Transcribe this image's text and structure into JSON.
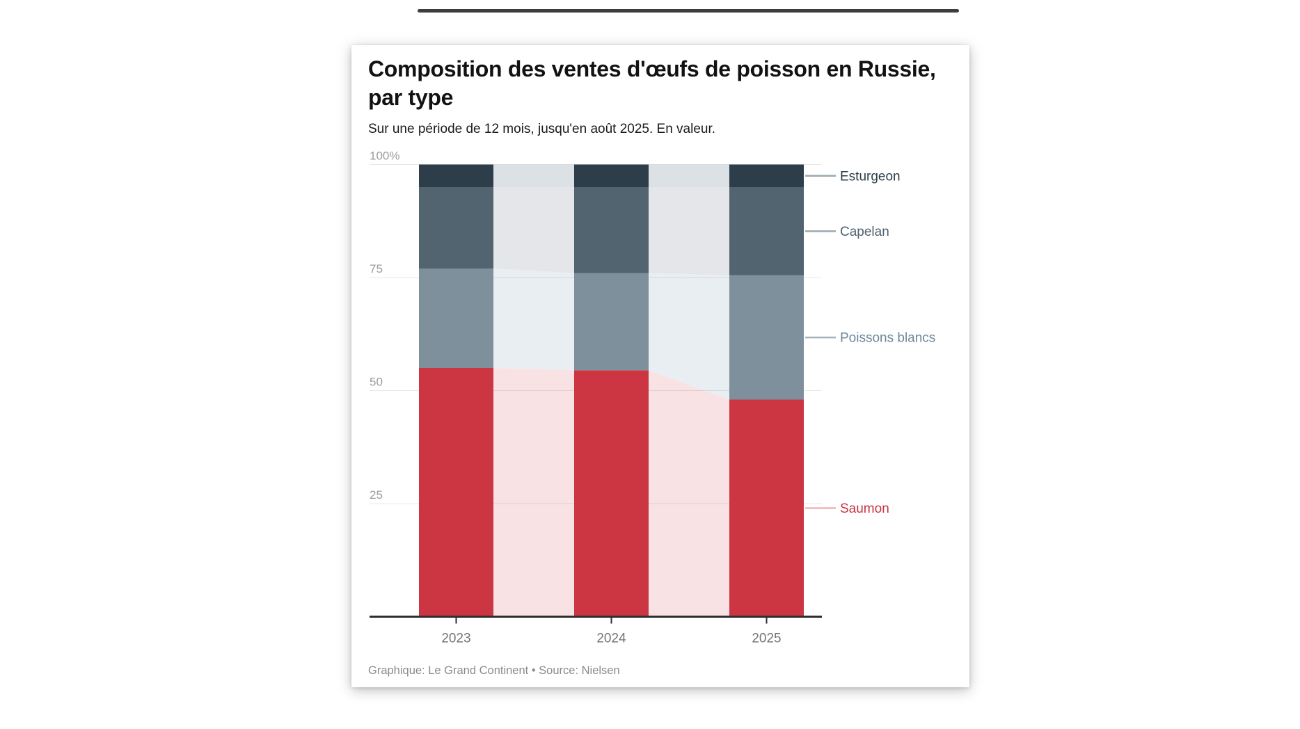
{
  "card": {
    "title": "Composition des ventes d'œufs de poisson en Russie, par type",
    "subtitle": "Sur une période de 12 mois, jusqu'en août 2025. En valeur.",
    "footer": "Graphique: Le Grand Continent • Source: Nielsen"
  },
  "chart_data": {
    "type": "bar",
    "variant": "100-percent-stacked-columns-with-connector-areas",
    "title": "Composition des ventes d'œufs de poisson en Russie, par type",
    "subtitle": "Sur une période de 12 mois, jusqu'en août 2025. En valeur.",
    "source": "Graphique: Le Grand Continent • Source: Nielsen",
    "unit": "%",
    "categories": [
      "2023",
      "2024",
      "2025"
    ],
    "series": [
      {
        "name": "Saumon",
        "values": [
          55,
          54.5,
          48
        ],
        "color": "#cb3642",
        "light_color": "#f8e2e4",
        "label_color": "#c73340",
        "leader_color": "#efb3b8"
      },
      {
        "name": "Poissons blancs",
        "values": [
          22,
          21.5,
          27.5
        ],
        "color": "#7e909c",
        "light_color": "#e9eef2",
        "label_color": "#6e8796",
        "leader_color": "#a5b2bb"
      },
      {
        "name": "Capelan",
        "values": [
          18,
          19,
          19.5
        ],
        "color": "#52646f",
        "light_color": "#e5e6e9",
        "label_color": "#4e6270",
        "leader_color": "#9da9b0"
      },
      {
        "name": "Esturgeon",
        "values": [
          5,
          5,
          5
        ],
        "color": "#2d3e4a",
        "light_color": "#dce1e5",
        "label_color": "#2d3e4a",
        "leader_color": "#9da9b0"
      }
    ],
    "y_axis": {
      "range": [
        0,
        100
      ],
      "grid": true,
      "ticks": [
        {
          "value": 100,
          "label": "100%"
        },
        {
          "value": 75,
          "label": "75"
        },
        {
          "value": 50,
          "label": "50"
        },
        {
          "value": 25,
          "label": "25"
        }
      ]
    },
    "legend_position": "right",
    "legend": [
      "Esturgeon",
      "Capelan",
      "Poissons blancs",
      "Saumon"
    ]
  },
  "colors": {
    "axis_line": "#2e2e2e",
    "gridline": "rgba(0,0,0,0.09)",
    "y_tick_label": "#9b9b9b",
    "x_tick_label": "#757575"
  }
}
